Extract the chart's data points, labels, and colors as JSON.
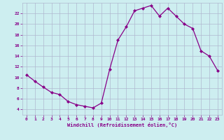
{
  "x": [
    0,
    1,
    2,
    3,
    4,
    5,
    6,
    7,
    8,
    9,
    10,
    11,
    12,
    13,
    14,
    15,
    16,
    17,
    18,
    19,
    20,
    21,
    22,
    23
  ],
  "y": [
    10.5,
    9.3,
    8.2,
    7.2,
    6.8,
    5.5,
    4.9,
    4.6,
    4.3,
    5.2,
    11.5,
    17.0,
    19.5,
    22.5,
    23.0,
    23.5,
    21.5,
    23.0,
    21.5,
    20.0,
    19.2,
    15.0,
    14.0,
    11.3
  ],
  "line_color": "#880088",
  "marker": "D",
  "markersize": 2.0,
  "linewidth": 0.9,
  "xlabel": "Windchill (Refroidissement éolien,°C)",
  "xlim": [
    -0.5,
    23.5
  ],
  "ylim": [
    3.0,
    24.0
  ],
  "yticks": [
    4,
    6,
    8,
    10,
    12,
    14,
    16,
    18,
    20,
    22
  ],
  "xticks": [
    0,
    1,
    2,
    3,
    4,
    5,
    6,
    7,
    8,
    9,
    10,
    11,
    12,
    13,
    14,
    15,
    16,
    17,
    18,
    19,
    20,
    21,
    22,
    23
  ],
  "bg_color": "#cdeef0",
  "grid_color": "#b0b8d0",
  "line_tick_color": "#880088",
  "xlabel_fontsize": 5.0,
  "tick_fontsize": 4.5
}
